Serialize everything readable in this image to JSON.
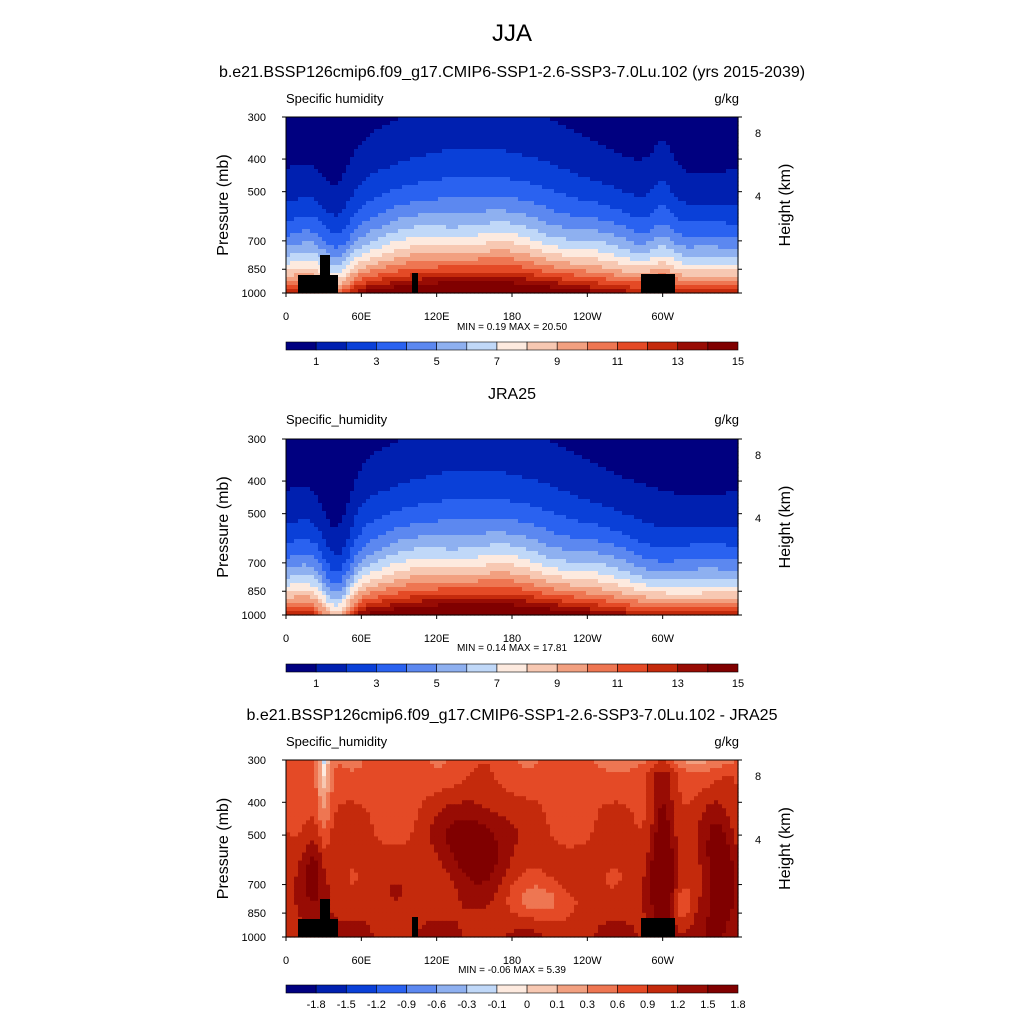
{
  "title": "JJA",
  "colors": {
    "abs_scale": [
      "#000080",
      "#0020b0",
      "#0a40d8",
      "#2a62f0",
      "#5c88f0",
      "#8eb0f0",
      "#c0d8f8",
      "#fdeadf",
      "#f7c8b2",
      "#f2a080",
      "#ee7652",
      "#e44a26",
      "#c42a0c",
      "#980c04",
      "#800000"
    ],
    "diff_scale": [
      "#000080",
      "#0020b0",
      "#0a40d8",
      "#2a62f0",
      "#5c88f0",
      "#8eb0f0",
      "#c0d8f8",
      "#fdeadf",
      "#f7c8b2",
      "#f2a080",
      "#ee7652",
      "#e44a26",
      "#c42a0c",
      "#980c04",
      "#800000"
    ]
  },
  "chart_data": [
    {
      "type": "heatmap",
      "panel_title": "b.e21.BSSP126cmip6.f09_g17.CMIP6-SSP1-2.6-SSP3-7.0Lu.102 (yrs 2015-2039)",
      "left_label": "Specific humidity",
      "units": "g/kg",
      "ylabel": "Pressure (mb)",
      "y2label": "Height (km)",
      "y_ticks": [
        "300",
        "400",
        "500",
        "700",
        "850",
        "1000"
      ],
      "y2_ticks": [
        "8",
        "4"
      ],
      "x_ticks": [
        "0",
        "60E",
        "120E",
        "180",
        "120W",
        "60W"
      ],
      "stats": "MIN =   0.19  MAX =  20.50",
      "colorbar_labels": [
        "1",
        "3",
        "5",
        "7",
        "9",
        "11",
        "13",
        "15"
      ],
      "value_range": [
        0.19,
        20.5
      ]
    },
    {
      "type": "heatmap",
      "panel_title": "JRA25",
      "left_label": "Specific_humidity",
      "units": "g/kg",
      "ylabel": "Pressure (mb)",
      "y2label": "Height (km)",
      "y_ticks": [
        "300",
        "400",
        "500",
        "700",
        "850",
        "1000"
      ],
      "y2_ticks": [
        "8",
        "4"
      ],
      "x_ticks": [
        "0",
        "60E",
        "120E",
        "180",
        "120W",
        "60W"
      ],
      "stats": "MIN =   0.14  MAX =  17.81",
      "colorbar_labels": [
        "1",
        "3",
        "5",
        "7",
        "9",
        "11",
        "13",
        "15"
      ],
      "value_range": [
        0.14,
        17.81
      ]
    },
    {
      "type": "heatmap",
      "panel_title": "b.e21.BSSP126cmip6.f09_g17.CMIP6-SSP1-2.6-SSP3-7.0Lu.102 - JRA25",
      "left_label": "Specific_humidity",
      "units": "g/kg",
      "ylabel": "Pressure (mb)",
      "y2label": "Height (km)",
      "y_ticks": [
        "300",
        "400",
        "500",
        "700",
        "850",
        "1000"
      ],
      "y2_ticks": [
        "8",
        "4"
      ],
      "x_ticks": [
        "0",
        "60E",
        "120E",
        "180",
        "120W",
        "60W"
      ],
      "stats": "MIN =  -0.06  MAX =   5.39",
      "colorbar_labels": [
        "-1.8",
        "-1.5",
        "-1.2",
        "-0.9",
        "-0.6",
        "-0.3",
        "-0.1",
        "0",
        "0.1",
        "0.3",
        "0.6",
        "0.9",
        "1.2",
        "1.5",
        "1.8"
      ],
      "value_range": [
        -0.06,
        5.39
      ]
    }
  ]
}
